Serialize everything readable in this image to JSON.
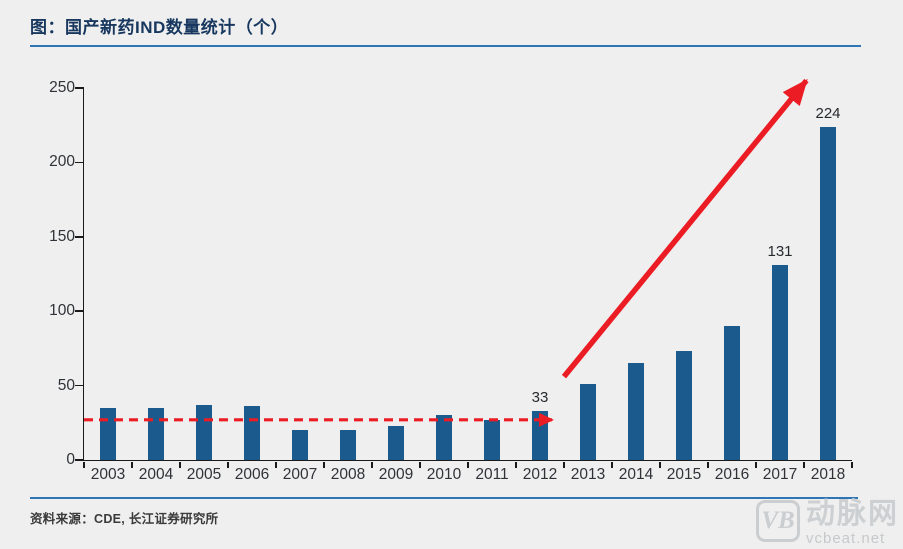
{
  "header": {
    "title": "图：国产新药IND数量统计（个）"
  },
  "footer": {
    "source": "资料来源：CDE, 长江证券研究所"
  },
  "watermark": {
    "logo_text": "VB",
    "brand": "动脉网",
    "site": "vcbeat.net"
  },
  "colors": {
    "background": "#EFEFEF",
    "bar": "#1A5A8C",
    "accent_red": "#EC1C24",
    "title_navy": "#17375E",
    "rule_blue": "#2E75B6",
    "axis": "#1a1a1a",
    "watermark_gray": "#c9ccce"
  },
  "chart_data": {
    "type": "bar",
    "title": "图：国产新药IND数量统计（个）",
    "xlabel": "",
    "ylabel": "",
    "categories": [
      "2003",
      "2004",
      "2005",
      "2006",
      "2007",
      "2008",
      "2009",
      "2010",
      "2011",
      "2012",
      "2013",
      "2014",
      "2015",
      "2016",
      "2017",
      "2018"
    ],
    "values": [
      35,
      35,
      37,
      36,
      20,
      20,
      23,
      30,
      27,
      33,
      51,
      65,
      73,
      90,
      131,
      224
    ],
    "data_labels": {
      "2012": "33",
      "2017": "131",
      "2018": "224"
    },
    "ylim": [
      0,
      250
    ],
    "yticks": [
      0,
      50,
      100,
      150,
      200,
      250
    ],
    "grid": false,
    "legend": null,
    "annotations": {
      "dashed_baseline": {
        "y_value": 27,
        "from_index": -0.5,
        "to_index": 9.25,
        "style": "dashed-red-arrow-right"
      },
      "trend_arrow": {
        "from": {
          "index": 9.5,
          "y_value": 56
        },
        "to": {
          "index": 14.55,
          "y_value": 255
        },
        "style": "solid-red-arrow"
      }
    }
  }
}
